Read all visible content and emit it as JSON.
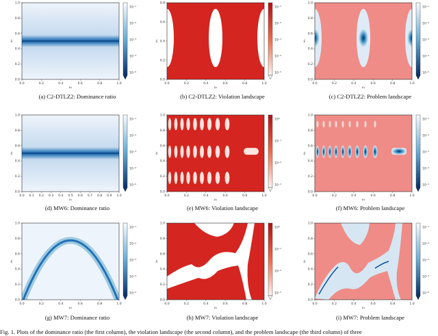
{
  "colors": {
    "blue_light": "#eef4fb",
    "blue_dark": "#08306b",
    "red_bg": "#d42520",
    "red_light": "#fde5e0",
    "pink_problem": "#ef8c87",
    "white": "#ffffff"
  },
  "colorbar_labels": {
    "dominance": [
      "10⁻¹",
      "10⁻²",
      "10⁻³",
      "10⁻⁴",
      "10⁻⁵"
    ],
    "violation": [
      "10⁻¹",
      "10⁻²",
      "10⁻³",
      "10⁻⁴",
      "10⁻⁵"
    ],
    "violation_mw6": [
      "10⁰",
      "10⁻¹",
      "10⁻²",
      "10⁻³"
    ],
    "violation_mw7": [
      "10⁰",
      "10⁻¹",
      "10⁻²",
      "10⁻³"
    ]
  },
  "panels": [
    {
      "id": "a",
      "caption": "(a) C2-DTLZ2: Dominance ratio",
      "kind": "dominance-line",
      "xlabel": "x₁",
      "ylabel": "x₂",
      "xticks": [
        "0.0",
        "0.2",
        "0.4",
        "0.6",
        "0.8",
        "1.0"
      ],
      "yticks": [
        "1.0",
        "0.8",
        "0.6",
        "0.4",
        "0.2",
        "0.0"
      ]
    },
    {
      "id": "b",
      "caption": "(b) C2-DTLZ2: Violation landscape",
      "kind": "violation-c2",
      "xlabel": "x₁",
      "ylabel": "x₂",
      "xticks": [
        "0.0",
        "0.2",
        "0.4",
        "0.6",
        "0.8",
        "1.0"
      ],
      "yticks": [
        "0.8",
        "0.6",
        "0.4",
        "0.2",
        "0.0"
      ]
    },
    {
      "id": "c",
      "caption": "(c) C2-DTLZ2: Problem landscape",
      "kind": "problem-c2",
      "xlabel": "x₁",
      "ylabel": "x₂",
      "xticks": [
        "0.0",
        "0.2",
        "0.4",
        "0.6",
        "0.8",
        "1.0"
      ],
      "yticks": [
        "1.0",
        "0.8",
        "0.6",
        "0.4",
        "0.2",
        "0.0"
      ]
    },
    {
      "id": "d",
      "caption": "(d) MW6: Dominance ratio",
      "kind": "dominance-line",
      "xlabel": "x₁",
      "ylabel": "x₂",
      "xticks": [
        "0.0",
        "0.1",
        "0.2",
        "0.3",
        "0.4",
        "0.5",
        "0.6",
        "0.7",
        "0.8",
        "0.9",
        "1.0"
      ],
      "yticks": [
        "1.0",
        "0.8",
        "0.6",
        "0.4",
        "0.2",
        "0.0"
      ]
    },
    {
      "id": "e",
      "caption": "(e) MW6: Violation landscape",
      "kind": "violation-mw6",
      "xlabel": "x₁",
      "ylabel": "x₂",
      "xticks": [
        "0.0",
        "0.2",
        "0.4",
        "0.6",
        "0.8",
        "1.0"
      ],
      "yticks": [
        "1.0",
        "0.8",
        "0.6",
        "0.4",
        "0.2",
        "0.0"
      ]
    },
    {
      "id": "f",
      "caption": "(f) MW6: Problem landscape",
      "kind": "problem-mw6",
      "xlabel": "x₁",
      "ylabel": "x₂",
      "xticks": [
        "0.0",
        "0.2",
        "0.4",
        "0.6",
        "0.8",
        "1.0"
      ],
      "yticks": [
        "1.0",
        "0.8",
        "0.6",
        "0.4",
        "0.2",
        "0.0"
      ]
    },
    {
      "id": "g",
      "caption": "(g) MW7: Dominance ratio",
      "kind": "dominance-arc",
      "xlabel": "x₁",
      "ylabel": "x₂",
      "xticks": [
        "0.0",
        "0.2",
        "0.4",
        "0.6",
        "0.8",
        "1.0"
      ],
      "yticks": [
        "1.0",
        "0.8",
        "0.6",
        "0.4",
        "0.2",
        "0.0"
      ]
    },
    {
      "id": "h",
      "caption": "(h) MW7: Violation landscape",
      "kind": "violation-mw7",
      "xlabel": "x₁",
      "ylabel": "x₂",
      "xticks": [
        "0.0",
        "0.2",
        "0.4",
        "0.6",
        "0.8",
        "1.0"
      ],
      "yticks": [
        "1.0",
        "0.8",
        "0.6",
        "0.4",
        "0.2",
        "0.0"
      ]
    },
    {
      "id": "i",
      "caption": "(i) MW7: Problem landscape",
      "kind": "problem-mw7",
      "xlabel": "x₁",
      "ylabel": "x₂",
      "xticks": [
        "0.0",
        "0.2",
        "0.4",
        "0.6",
        "0.8",
        "1.0"
      ],
      "yticks": [
        "1.0",
        "0.8",
        "0.6",
        "0.4",
        "0.2",
        "0.0"
      ]
    }
  ],
  "figure_caption": "Fig. 1.  Plots of the dominance ratio (the first column), the violation landscape (the second column), and the problem landscape (the third column) of three"
}
